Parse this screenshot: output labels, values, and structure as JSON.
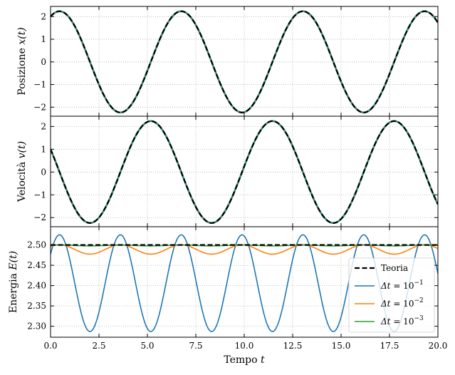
{
  "chart_data": [
    {
      "type": "line",
      "ylabel": "Posizione x(t)",
      "ylabel_math_var": "x(t)",
      "xlim": [
        0,
        20
      ],
      "ylim": [
        -2.4,
        2.45
      ],
      "yticks": [
        2,
        1,
        0,
        -1,
        -2
      ],
      "ytick_labels": [
        "2",
        "1",
        "0",
        "−1",
        "−2"
      ],
      "grid": true,
      "model": {
        "amplitude": 2.2361,
        "omega": 1.0,
        "x0": 2.0,
        "v0": 1.0
      },
      "series": [
        {
          "name": "Teoria",
          "key": "theory",
          "color": "#000000",
          "dash": true
        },
        {
          "name": "Δt=10⁻¹",
          "key": "dt1",
          "color": "#1f77b4"
        },
        {
          "name": "Δt=10⁻²",
          "key": "dt2",
          "color": "#ff7f0e"
        },
        {
          "name": "Δt=10⁻³",
          "key": "dt3",
          "color": "#2ca02c"
        }
      ]
    },
    {
      "type": "line",
      "ylabel": "Velocità v(t)",
      "ylabel_math_var": "v(t)",
      "xlim": [
        0,
        20
      ],
      "ylim": [
        -2.4,
        2.45
      ],
      "yticks": [
        2,
        1,
        0,
        -1,
        -2
      ],
      "ytick_labels": [
        "2",
        "1",
        "0",
        "−1",
        "−2"
      ],
      "grid": true,
      "series": [
        {
          "name": "Teoria",
          "key": "theory",
          "color": "#000000",
          "dash": true
        },
        {
          "name": "Δt=10⁻¹",
          "key": "dt1",
          "color": "#1f77b4"
        },
        {
          "name": "Δt=10⁻²",
          "key": "dt2",
          "color": "#ff7f0e"
        },
        {
          "name": "Δt=10⁻³",
          "key": "dt3",
          "color": "#2ca02c"
        }
      ]
    },
    {
      "type": "line",
      "ylabel": "Energia E(t)",
      "ylabel_math_var": "E(t)",
      "xlabel": "Tempo t",
      "xlabel_math_var": "t",
      "xlim": [
        0,
        20
      ],
      "ylim": [
        2.273,
        2.545
      ],
      "yticks": [
        2.5,
        2.45,
        2.4,
        2.35,
        2.3
      ],
      "ytick_labels": [
        "2.50",
        "2.45",
        "2.40",
        "2.35",
        "2.30"
      ],
      "xticks": [
        0,
        2.5,
        5,
        7.5,
        10,
        12.5,
        15,
        17.5,
        20
      ],
      "xtick_labels": [
        "0.0",
        "2.5",
        "5.0",
        "7.5",
        "10.0",
        "12.5",
        "15.0",
        "17.5",
        "20.0"
      ],
      "grid": true,
      "legend_position": "lower-right",
      "energy_model": {
        "theory": 2.5,
        "dt1": {
          "mean": 2.406,
          "amplitude": 0.119
        },
        "dt2": {
          "mean": 2.489,
          "amplitude": 0.0115
        },
        "dt3": {
          "mean": 2.4989,
          "amplitude": 0.0011
        }
      },
      "series": [
        {
          "name": "Teoria",
          "key": "theory",
          "color": "#000000",
          "dash": true
        },
        {
          "name": "Δt=10⁻¹",
          "key": "dt1",
          "color": "#1f77b4"
        },
        {
          "name": "Δt=10⁻²",
          "key": "dt2",
          "color": "#ff7f0e"
        },
        {
          "name": "Δt=10⁻³",
          "key": "dt3",
          "color": "#2ca02c"
        }
      ],
      "legend": {
        "entries": [
          {
            "key": "theory",
            "label": "Teoria",
            "math": false
          },
          {
            "key": "dt1",
            "label_base": "Δt = 10",
            "exponent": "−1",
            "math": true
          },
          {
            "key": "dt2",
            "label_base": "Δt = 10",
            "exponent": "−2",
            "math": true
          },
          {
            "key": "dt3",
            "label_base": "Δt = 10",
            "exponent": "−3",
            "math": true
          }
        ]
      }
    }
  ]
}
